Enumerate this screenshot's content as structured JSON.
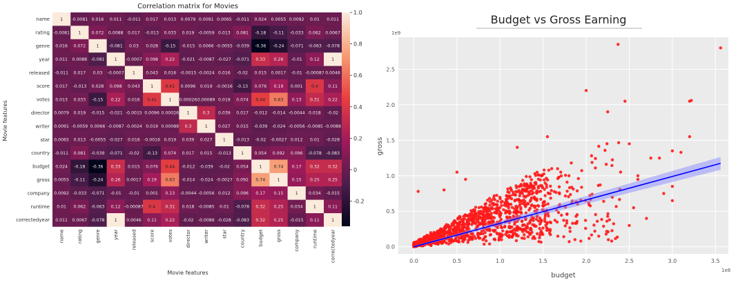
{
  "chart_data": [
    {
      "type": "heatmap",
      "title": "Correlation matrix for Movies",
      "xlabel": "Movie features",
      "ylabel": "Movie features",
      "labels": [
        "name",
        "rating",
        "genre",
        "year",
        "released",
        "score",
        "votes",
        "director",
        "writer",
        "star",
        "country",
        "budget",
        "gross",
        "company",
        "runtime",
        "correctedyear"
      ],
      "values": [
        [
          1,
          -0.0081,
          0.016,
          0.011,
          -0.011,
          0.017,
          0.013,
          0.0079,
          0.0091,
          0.0065,
          -0.011,
          0.024,
          0.0055,
          0.0092,
          0.01,
          0.011
        ],
        [
          -0.0081,
          1,
          0.072,
          0.0088,
          0.017,
          -0.013,
          0.033,
          0.019,
          -0.0059,
          0.013,
          0.081,
          -0.18,
          -0.11,
          -0.033,
          0.062,
          0.0067
        ],
        [
          0.016,
          0.072,
          1,
          -0.081,
          0.03,
          0.028,
          -0.15,
          -0.015,
          0.0066,
          -0.0055,
          -0.039,
          -0.36,
          -0.24,
          -0.071,
          -0.063,
          -0.078
        ],
        [
          0.011,
          0.0088,
          -0.081,
          1,
          -0.0007,
          0.098,
          0.22,
          -0.021,
          -0.0087,
          -0.027,
          -0.071,
          0.33,
          0.26,
          -0.01,
          0.12,
          1
        ],
        [
          -0.011,
          0.017,
          0.03,
          -0.0007,
          1,
          0.043,
          0.016,
          -0.0015,
          -0.0024,
          0.016,
          -0.02,
          0.015,
          0.0017,
          -0.01,
          -0.00087,
          0.0046
        ],
        [
          0.017,
          -0.013,
          0.028,
          0.098,
          0.043,
          1,
          0.41,
          0.0096,
          0.019,
          -0.0016,
          -0.13,
          0.076,
          0.19,
          0.001,
          0.4,
          0.11
        ],
        [
          0.013,
          0.033,
          -0.15,
          0.22,
          0.016,
          0.41,
          1,
          0.00026,
          0.00089,
          0.019,
          0.074,
          0.44,
          0.63,
          0.13,
          0.31,
          0.22
        ],
        [
          0.0079,
          0.019,
          -0.015,
          -0.021,
          -0.0015,
          0.0096,
          0.00026,
          1,
          0.3,
          0.039,
          0.017,
          -0.012,
          -0.014,
          -0.0044,
          0.018,
          -0.02
        ],
        [
          0.0091,
          -0.0059,
          0.0066,
          -0.0087,
          -0.0024,
          0.019,
          0.00089,
          0.3,
          1,
          0.027,
          0.015,
          -0.039,
          -0.024,
          -0.0056,
          -0.0085,
          -0.0086
        ],
        [
          0.0065,
          0.013,
          -0.0055,
          -0.027,
          0.016,
          -0.0016,
          0.019,
          0.039,
          0.027,
          1,
          -0.013,
          -0.02,
          -0.0027,
          0.012,
          0.01,
          -0.028
        ],
        [
          -0.011,
          0.081,
          -0.039,
          -0.071,
          -0.02,
          -0.13,
          0.074,
          0.017,
          0.015,
          -0.013,
          1,
          0.054,
          0.092,
          0.096,
          -0.078,
          -0.083
        ],
        [
          0.024,
          -0.18,
          -0.36,
          0.33,
          0.015,
          0.076,
          0.44,
          -0.012,
          -0.039,
          -0.02,
          0.054,
          1,
          0.74,
          0.17,
          0.32,
          0.32
        ],
        [
          0.0055,
          -0.11,
          -0.24,
          0.26,
          0.0017,
          0.19,
          0.63,
          -0.014,
          -0.024,
          -0.0027,
          0.092,
          0.74,
          1,
          0.15,
          0.25,
          0.25
        ],
        [
          0.0092,
          -0.033,
          -0.071,
          -0.01,
          -0.01,
          0.001,
          0.13,
          -0.0044,
          -0.0056,
          0.012,
          0.096,
          0.17,
          0.15,
          1,
          0.034,
          -0.015
        ],
        [
          0.01,
          0.062,
          -0.063,
          0.12,
          -0.00087,
          0.4,
          0.31,
          0.018,
          -0.0085,
          0.01,
          -0.078,
          0.32,
          0.25,
          0.034,
          1,
          0.11
        ],
        [
          0.011,
          0.0067,
          -0.078,
          1,
          0.0046,
          0.11,
          0.22,
          -0.02,
          -0.0086,
          -0.028,
          -0.083,
          0.32,
          0.25,
          -0.015,
          0.11,
          1
        ]
      ],
      "cell_labels": [
        [
          "1",
          "-0.0081",
          "0.016",
          "0.011",
          "-0.011",
          "0.017",
          "0.013",
          "0.0079",
          "0.0091",
          "0.0065",
          "-0.011",
          "0.024",
          "0.0055",
          "0.0092",
          "0.01",
          "0.011"
        ],
        [
          "-0.0081",
          "1",
          "0.072",
          "0.0088",
          "0.017",
          "-0.013",
          "0.033",
          "0.019",
          "-0.0059",
          "0.013",
          "0.081",
          "-0.18",
          "-0.11",
          "-0.033",
          "0.062",
          "0.0067"
        ],
        [
          "0.016",
          "0.072",
          "1",
          "-0.081",
          "0.03",
          "0.028",
          "-0.15",
          "-0.015",
          "0.0066",
          "-0.0055",
          "-0.039",
          "-0.36",
          "-0.24",
          "-0.071",
          "-0.063",
          "-0.078"
        ],
        [
          "0.011",
          "0.0088",
          "-0.081",
          "1",
          "-0.0007",
          "0.098",
          "0.22",
          "-0.021",
          "-0.0087",
          "-0.027",
          "-0.071",
          "0.33",
          "0.26",
          "-0.01",
          "0.12",
          "1"
        ],
        [
          "-0.011",
          "0.017",
          "0.03",
          "-0.0007",
          "1",
          "0.043",
          "0.016",
          "-0.0015",
          "-0.0024",
          "0.016",
          "-0.02",
          "0.015",
          "0.0017",
          "-0.01",
          "-0.00087",
          "0.0046"
        ],
        [
          "0.017",
          "-0.013",
          "0.028",
          "0.098",
          "0.043",
          "1",
          "0.41",
          "0.0096",
          "0.019",
          "-0.0016",
          "-0.13",
          "0.076",
          "0.19",
          "0.001",
          "0.4",
          "0.11"
        ],
        [
          "0.013",
          "0.033",
          "-0.15",
          "0.22",
          "0.016",
          "0.41",
          "1",
          "0.00026",
          "0.00089",
          "0.019",
          "0.074",
          "0.44",
          "0.63",
          "0.13",
          "0.31",
          "0.22"
        ],
        [
          "0.0079",
          "0.019",
          "-0.015",
          "-0.021",
          "-0.0015",
          "0.0096",
          "0.00026",
          "1",
          "0.3",
          "0.039",
          "0.017",
          "-0.012",
          "-0.014",
          "-0.0044",
          "0.018",
          "-0.02"
        ],
        [
          "0.0091",
          "-0.0059",
          "0.0066",
          "-0.0087",
          "-0.0024",
          "0.019",
          "0.00089",
          "0.3",
          "1",
          "0.027",
          "0.015",
          "-0.039",
          "-0.024",
          "-0.0056",
          "-0.0085",
          "-0.0086"
        ],
        [
          "0.0065",
          "0.013",
          "-0.0055",
          "-0.027",
          "0.016",
          "-0.0016",
          "0.019",
          "0.039",
          "0.027",
          "1",
          "-0.013",
          "-0.02",
          "-0.0027",
          "0.012",
          "0.01",
          "-0.028"
        ],
        [
          "-0.011",
          "0.081",
          "-0.039",
          "-0.071",
          "-0.02",
          "-0.13",
          "0.074",
          "0.017",
          "0.015",
          "-0.013",
          "1",
          "0.054",
          "0.092",
          "0.096",
          "-0.078",
          "-0.083"
        ],
        [
          "0.024",
          "-0.18",
          "-0.36",
          "0.33",
          "0.015",
          "0.076",
          "0.44",
          "-0.012",
          "-0.039",
          "-0.02",
          "0.054",
          "1",
          "0.74",
          "0.17",
          "0.32",
          "0.32"
        ],
        [
          "0.0055",
          "-0.11",
          "-0.24",
          "0.26",
          "0.0017",
          "0.19",
          "0.63",
          "-0.014",
          "-0.024",
          "-0.0027",
          "0.092",
          "0.74",
          "1",
          "0.15",
          "0.25",
          "0.25"
        ],
        [
          "0.0092",
          "-0.033",
          "-0.071",
          "-0.01",
          "-0.01",
          "0.001",
          "0.13",
          "-0.0044",
          "-0.0056",
          "0.012",
          "0.096",
          "0.17",
          "0.15",
          "1",
          "0.034",
          "-0.015"
        ],
        [
          "0.01",
          "0.062",
          "-0.063",
          "0.12",
          "-0.00087",
          "0.4",
          "0.31",
          "0.018",
          "-0.0085",
          "0.01",
          "-0.078",
          "0.32",
          "0.25",
          "0.034",
          "1",
          "0.11"
        ],
        [
          "0.011",
          "0.0067",
          "-0.078",
          "1",
          "0.0046",
          "0.11",
          "0.22",
          "-0.02",
          "-0.0086",
          "-0.028",
          "-0.083",
          "0.32",
          "0.25",
          "-0.015",
          "0.11",
          "1"
        ]
      ],
      "colorbar": {
        "min": -0.36,
        "max": 1,
        "ticks": [
          -0.2,
          0,
          0.2,
          0.4,
          0.6,
          0.8,
          1
        ],
        "tick_labels": [
          "-0.2",
          "0",
          "0.2",
          "0.4",
          "0.6",
          "0.8",
          "1.0"
        ],
        "colormap": "rocket",
        "placement": "right"
      }
    },
    {
      "type": "scatter",
      "title": "Budget vs Gross Earning",
      "xlabel": "budget",
      "ylabel": "gross",
      "x_offset_label": "1e8",
      "y_offset_label": "1e9",
      "xlim": [
        -0.18,
        3.65
      ],
      "ylim": [
        -0.1,
        2.95
      ],
      "x_ticks": [
        0.0,
        0.5,
        1.0,
        1.5,
        2.0,
        2.5,
        3.0,
        3.5
      ],
      "x_tick_labels": [
        "0.0",
        "0.5",
        "1.0",
        "1.5",
        "2.0",
        "2.5",
        "3.0",
        "3.5"
      ],
      "y_ticks": [
        0.0,
        0.5,
        1.0,
        1.5,
        2.0,
        2.5
      ],
      "y_tick_labels": [
        "0.0",
        "0.5",
        "1.0",
        "1.5",
        "2.0",
        "2.5"
      ],
      "grid": true,
      "point_color": "#ff1a1a",
      "line_color": "#0000ff",
      "band_color": "#8c8cff",
      "regression": {
        "intercept": 0.0,
        "slope": 0.33,
        "x_range": [
          0.0,
          3.56
        ]
      },
      "outliers": [
        [
          3.56,
          2.8
        ],
        [
          2.37,
          2.85
        ],
        [
          2.0,
          2.2
        ],
        [
          2.45,
          2.05
        ],
        [
          3.2,
          2.05
        ],
        [
          3.22,
          2.06
        ],
        [
          2.5,
          1.45
        ],
        [
          3.2,
          1.55
        ],
        [
          3.0,
          1.35
        ],
        [
          2.85,
          1.25
        ],
        [
          3.1,
          1.33
        ],
        [
          2.75,
          1.25
        ],
        [
          3.0,
          0.65
        ],
        [
          3.0,
          0.85
        ],
        [
          2.6,
          1.0
        ],
        [
          2.7,
          0.4
        ],
        [
          2.5,
          0.3
        ],
        [
          2.25,
          1.9
        ],
        [
          1.55,
          1.55
        ],
        [
          1.2,
          1.4
        ],
        [
          1.6,
          1.1
        ],
        [
          2.6,
          0.95
        ],
        [
          0.5,
          1.05
        ],
        [
          0.6,
          0.95
        ],
        [
          0.05,
          0.78
        ],
        [
          0.35,
          0.8
        ],
        [
          1.8,
          1.0
        ],
        [
          2.9,
          0.75
        ],
        [
          2.55,
          0.55
        ]
      ]
    }
  ]
}
